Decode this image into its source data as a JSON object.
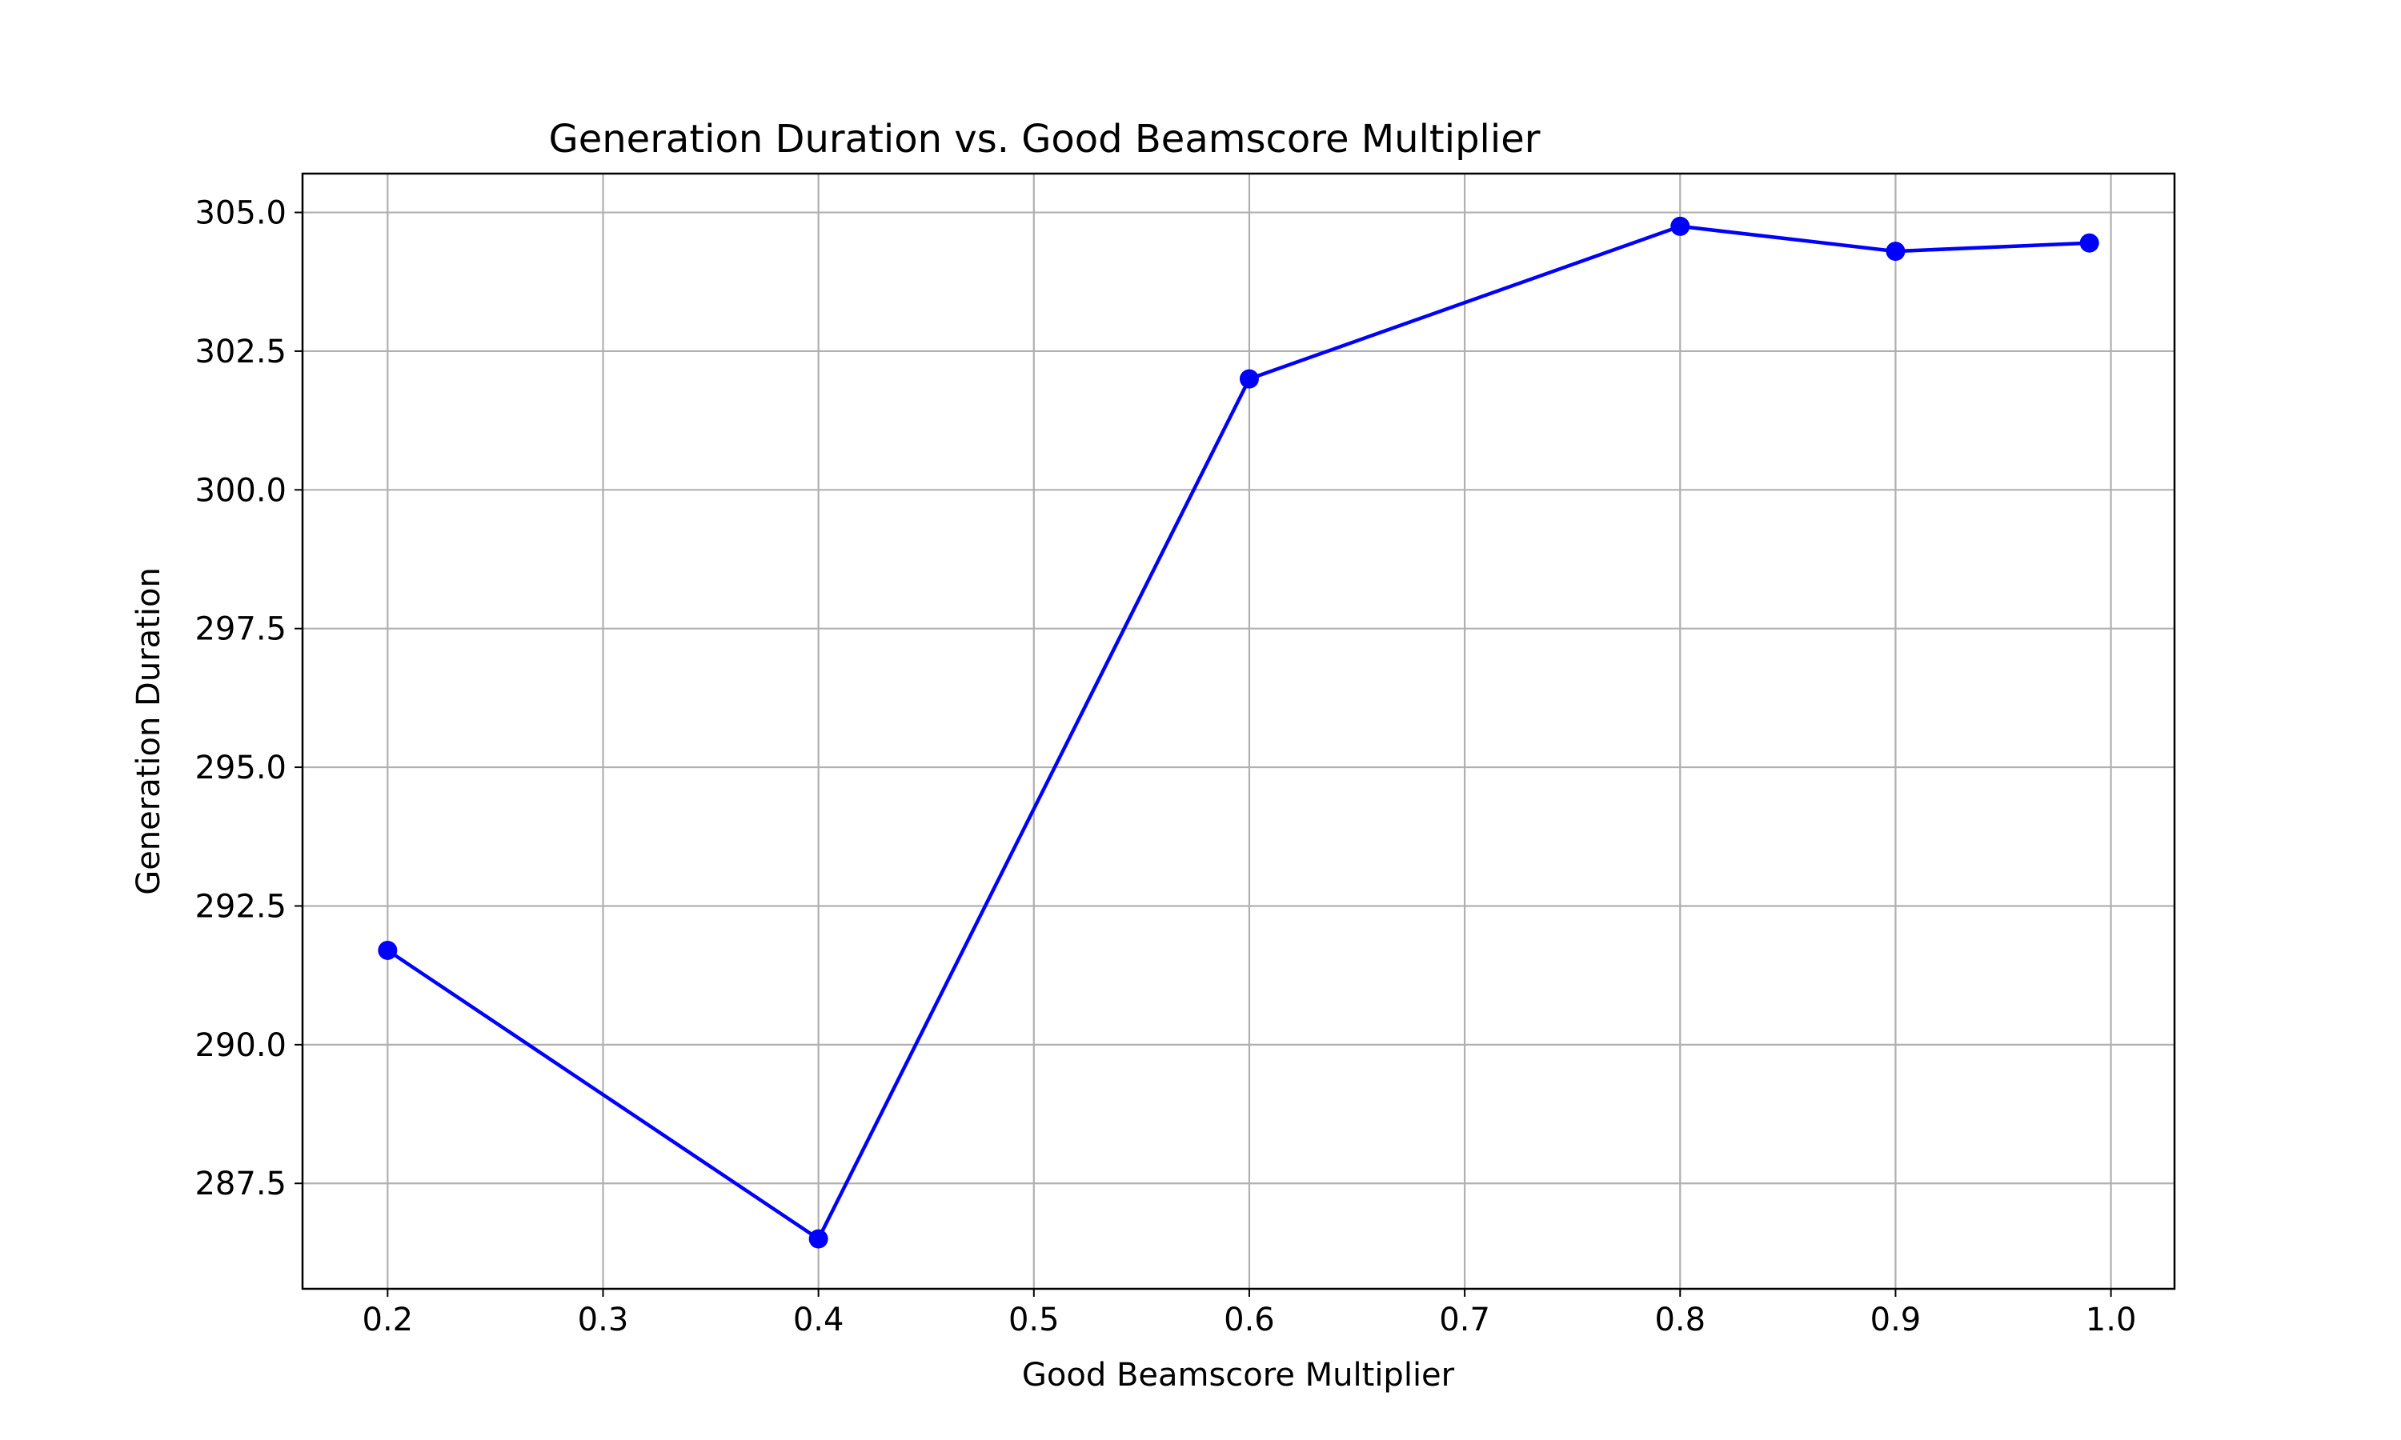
{
  "chart_data": {
    "type": "line",
    "title": "Generation Duration vs. Good Beamscore Multiplier",
    "xlabel": "Good Beamscore Multiplier",
    "ylabel": "Generation Duration",
    "x": [
      0.2,
      0.4,
      0.6,
      0.8,
      0.9,
      0.99
    ],
    "series": [
      {
        "values": [
          291.7,
          286.5,
          302.0,
          304.75,
          304.3,
          304.45
        ],
        "color": "#0000ff",
        "marker": "circle"
      }
    ],
    "xticks": [
      0.2,
      0.3,
      0.4,
      0.5,
      0.6,
      0.7,
      0.8,
      0.9,
      1.0
    ],
    "xtick_labels": [
      "0.2",
      "0.3",
      "0.4",
      "0.5",
      "0.6",
      "0.7",
      "0.8",
      "0.9",
      "1.0"
    ],
    "yticks": [
      287.5,
      290.0,
      292.5,
      295.0,
      297.5,
      300.0,
      302.5,
      305.0
    ],
    "ytick_labels": [
      "287.5",
      "290.0",
      "292.5",
      "295.0",
      "297.5",
      "300.0",
      "302.5",
      "305.0"
    ],
    "xlim": [
      0.1605,
      1.0295
    ],
    "ylim": [
      285.6,
      305.7
    ],
    "grid": true,
    "legend": false
  }
}
